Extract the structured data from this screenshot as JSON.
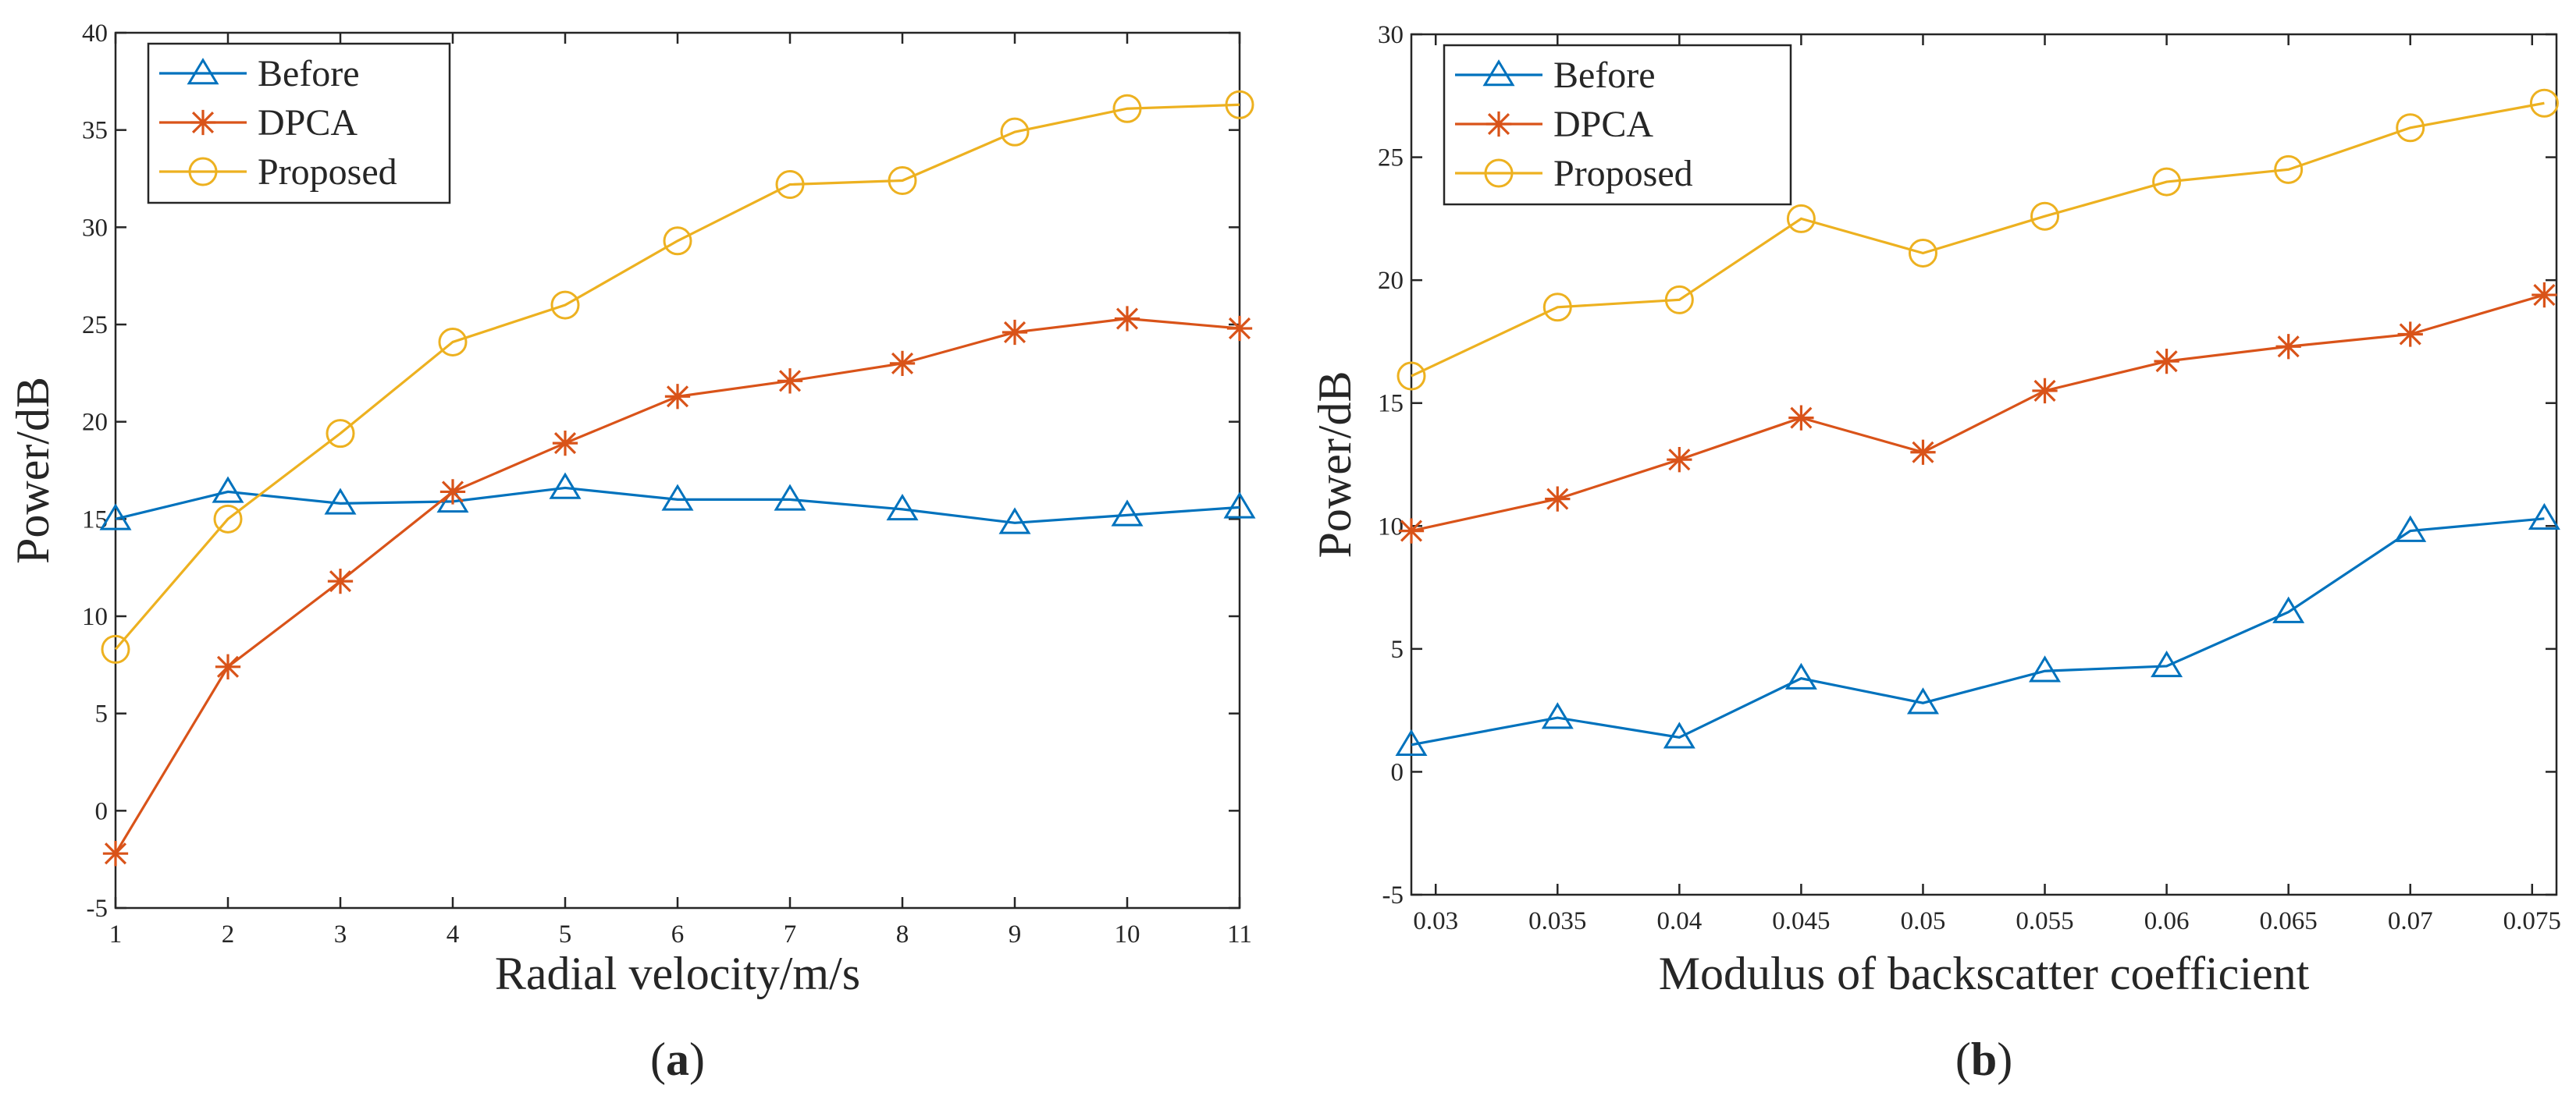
{
  "colors": {
    "before": "#0072BD",
    "dpca": "#D95319",
    "proposed": "#EDB120",
    "axis": "#262626"
  },
  "chart_data": [
    {
      "type": "line",
      "panel_label": "a",
      "title": "",
      "xlabel": "Radial velocity/m/s",
      "ylabel": "Power/dB",
      "xlim": [
        1,
        11
      ],
      "ylim": [
        -5,
        40
      ],
      "xticks": [
        1,
        2,
        3,
        4,
        5,
        6,
        7,
        8,
        9,
        10,
        11
      ],
      "xtick_labels": [
        "1",
        "2",
        "3",
        "4",
        "5",
        "6",
        "7",
        "8",
        "9",
        "10",
        "11"
      ],
      "yticks": [
        -5,
        0,
        5,
        10,
        15,
        20,
        25,
        30,
        35,
        40
      ],
      "ytick_labels": [
        "-5",
        "0",
        "5",
        "10",
        "15",
        "20",
        "25",
        "30",
        "35",
        "40"
      ],
      "legend_position": "top-left",
      "x": [
        1,
        2,
        3,
        4,
        5,
        6,
        7,
        8,
        9,
        10,
        11
      ],
      "series": [
        {
          "name": "Before",
          "key": "before",
          "marker": "triangle",
          "values": [
            15.0,
            16.4,
            15.8,
            15.9,
            16.6,
            16.0,
            16.0,
            15.5,
            14.8,
            15.2,
            15.6
          ]
        },
        {
          "name": "DPCA",
          "key": "dpca",
          "marker": "asterisk",
          "values": [
            -2.2,
            7.4,
            11.8,
            16.4,
            18.9,
            21.3,
            22.1,
            23.0,
            24.6,
            25.3,
            24.8
          ]
        },
        {
          "name": "Proposed",
          "key": "proposed",
          "marker": "circle",
          "values": [
            8.3,
            15.0,
            19.4,
            24.1,
            26.0,
            29.3,
            32.2,
            32.4,
            34.9,
            36.1,
            36.3
          ]
        }
      ]
    },
    {
      "type": "line",
      "panel_label": "b",
      "title": "",
      "xlabel": "Modulus of backscatter coefficient",
      "ylabel": "Power/dB",
      "xlim": [
        0.029,
        0.076
      ],
      "ylim": [
        -5,
        30
      ],
      "xticks": [
        0.03,
        0.035,
        0.04,
        0.045,
        0.05,
        0.055,
        0.06,
        0.065,
        0.07,
        0.075
      ],
      "xtick_labels": [
        "0.03",
        "0.035",
        "0.04",
        "0.045",
        "0.05",
        "0.055",
        "0.06",
        "0.065",
        "0.07",
        "0.075"
      ],
      "yticks": [
        -5,
        0,
        5,
        10,
        15,
        20,
        25,
        30
      ],
      "ytick_labels": [
        "-5",
        "0",
        "5",
        "10",
        "15",
        "20",
        "25",
        "30"
      ],
      "legend_position": "top-left",
      "x": [
        0.029,
        0.035,
        0.04,
        0.045,
        0.05,
        0.055,
        0.06,
        0.065,
        0.07,
        0.0755
      ],
      "series": [
        {
          "name": "Before",
          "key": "before",
          "marker": "triangle",
          "values": [
            1.1,
            2.2,
            1.4,
            3.8,
            2.8,
            4.1,
            4.3,
            6.5,
            9.8,
            10.3
          ]
        },
        {
          "name": "DPCA",
          "key": "dpca",
          "marker": "asterisk",
          "values": [
            9.8,
            11.1,
            12.7,
            14.4,
            13.0,
            15.5,
            16.7,
            17.3,
            17.8,
            19.4
          ]
        },
        {
          "name": "Proposed",
          "key": "proposed",
          "marker": "circle",
          "values": [
            16.1,
            18.9,
            19.2,
            22.5,
            21.1,
            22.6,
            24.0,
            24.5,
            26.2,
            27.2
          ]
        }
      ]
    }
  ]
}
